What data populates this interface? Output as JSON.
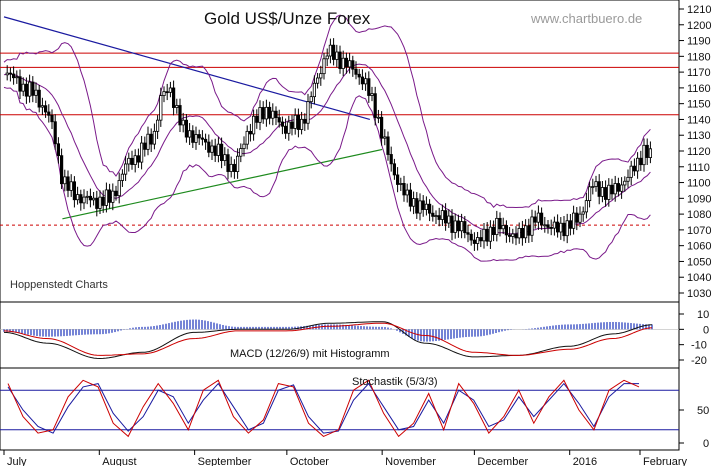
{
  "chart_data": [
    {
      "type": "candlestick",
      "title": "Gold US$/Unze Forex",
      "source": "www.chartbuero.de",
      "note": "Hoppenstedt Charts",
      "ylim": [
        1025,
        1215
      ],
      "ytick_labels": [
        "1210",
        "1200",
        "1190",
        "1180",
        "1170",
        "1160",
        "1150",
        "1140",
        "1130",
        "1120",
        "1110",
        "1100",
        "1090",
        "1080",
        "1070",
        "1060",
        "1050",
        "1040",
        "1030"
      ],
      "x_labels": [
        "July",
        "August",
        "September",
        "October",
        "November",
        "December",
        "2016",
        "February"
      ],
      "horizontal_lines": [
        {
          "value": 1182,
          "style": "solid",
          "color": "#cc0000"
        },
        {
          "value": 1173,
          "style": "solid",
          "color": "#cc0000"
        },
        {
          "value": 1143,
          "style": "solid",
          "color": "#cc0000"
        },
        {
          "value": 1073,
          "style": "dashed",
          "color": "#cc0000"
        }
      ],
      "trendlines": [
        {
          "name": "resistance",
          "color": "#1a1aa0",
          "points": [
            [
              "2015-07-01",
              1205
            ],
            [
              "2015-10-28",
              1140
            ]
          ]
        },
        {
          "name": "support",
          "color": "#1d8a1d",
          "points": [
            [
              "2015-07-20",
              1077
            ],
            [
              "2015-11-01",
              1121
            ]
          ]
        }
      ],
      "bollinger_color": "#7a1a8a",
      "series": [
        {
          "x": [
            "2015-07-01",
            "2015-07-06",
            "2015-07-10",
            "2015-07-15",
            "2015-07-17",
            "2015-07-20",
            "2015-07-24",
            "2015-07-30",
            "2015-08-05",
            "2015-08-10",
            "2015-08-14",
            "2015-08-19",
            "2015-08-21",
            "2015-08-24",
            "2015-08-28",
            "2015-09-02",
            "2015-09-08",
            "2015-09-14",
            "2015-09-18",
            "2015-09-24",
            "2015-09-30",
            "2015-10-06",
            "2015-10-09",
            "2015-10-14",
            "2015-10-20",
            "2015-10-26",
            "2015-10-30",
            "2015-11-04",
            "2015-11-09",
            "2015-11-16",
            "2015-11-20",
            "2015-11-26",
            "2015-12-02",
            "2015-12-08",
            "2015-12-15",
            "2015-12-21",
            "2015-12-28",
            "2016-01-04",
            "2016-01-08",
            "2016-01-14",
            "2016-01-20",
            "2016-01-25",
            "2016-01-28"
          ],
          "close": [
            1172,
            1162,
            1158,
            1145,
            1133,
            1102,
            1092,
            1088,
            1090,
            1112,
            1118,
            1132,
            1153,
            1160,
            1134,
            1128,
            1120,
            1108,
            1132,
            1147,
            1135,
            1138,
            1155,
            1183,
            1176,
            1165,
            1145,
            1110,
            1090,
            1082,
            1078,
            1072,
            1062,
            1073,
            1065,
            1077,
            1070,
            1077,
            1098,
            1093,
            1103,
            1120,
            1115
          ]
        }
      ]
    },
    {
      "type": "line",
      "title": "MACD (12/26/9) mit Histogramm",
      "ylim": [
        -25,
        15
      ],
      "ytick_labels": [
        "10",
        "0",
        "-10",
        "-20"
      ],
      "series_colors": {
        "macd": "#111111",
        "signal": "#cc0000",
        "histogram": "#3a4fc4"
      },
      "x": [
        "2015-07-01",
        "2015-07-15",
        "2015-08-01",
        "2015-08-15",
        "2015-09-01",
        "2015-09-15",
        "2015-10-01",
        "2015-10-15",
        "2015-11-01",
        "2015-11-15",
        "2015-12-01",
        "2015-12-15",
        "2016-01-01",
        "2016-01-15",
        "2016-01-28"
      ],
      "series": [
        {
          "values": [
            -2,
            -9,
            -19,
            -15,
            -2,
            0,
            0,
            4,
            5,
            -9,
            -18,
            -17,
            -11,
            -3,
            3
          ]
        },
        {
          "values": [
            -1,
            -6,
            -17,
            -16,
            -6,
            -1,
            -1,
            2,
            4,
            -4,
            -15,
            -17,
            -13,
            -6,
            1
          ]
        }
      ]
    },
    {
      "type": "line",
      "title": "Stochastik (5/3/3)",
      "ylim": [
        0,
        100
      ],
      "ytick_labels": [
        "50",
        "0"
      ],
      "reference_lines": [
        80,
        20
      ],
      "series_colors": {
        "k": "#cc0000",
        "d": "#1a1aa0"
      },
      "series": [
        {
          "values": [
            90,
            40,
            15,
            20,
            70,
            95,
            85,
            30,
            10,
            55,
            90,
            60,
            20,
            80,
            95,
            40,
            15,
            35,
            90,
            85,
            30,
            10,
            20,
            80,
            95,
            45,
            10,
            30,
            75,
            20,
            90,
            60,
            15,
            40,
            80,
            30,
            70,
            95,
            50,
            20,
            80,
            95,
            85
          ]
        },
        {
          "values": [
            85,
            50,
            25,
            15,
            55,
            85,
            90,
            45,
            18,
            40,
            80,
            70,
            30,
            65,
            90,
            55,
            20,
            30,
            80,
            88,
            40,
            15,
            18,
            65,
            90,
            55,
            20,
            25,
            65,
            30,
            80,
            65,
            25,
            35,
            70,
            40,
            65,
            90,
            60,
            25,
            70,
            90,
            90
          ]
        }
      ]
    }
  ]
}
